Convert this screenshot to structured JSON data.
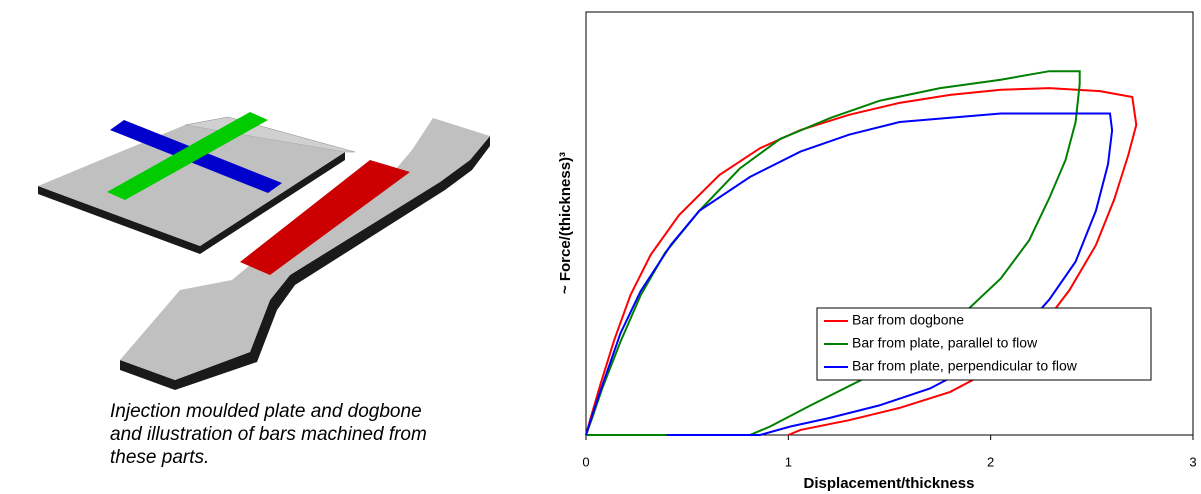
{
  "caption": [
    "Injection moulded plate and dogbone",
    "and illustration of bars machined from",
    "these parts."
  ],
  "chart_data": {
    "type": "line",
    "x_label": "Displacement/thickness",
    "y_label": "~ Force/(thickness)³",
    "xlim": [
      0,
      3
    ],
    "xticks": [
      0,
      1,
      2,
      3
    ],
    "ylim": [
      0,
      1
    ],
    "grid": false,
    "legend": "lower right",
    "series": [
      {
        "name": "Bar from dogbone",
        "color": "#ff0000",
        "x": [
          0,
          0.02,
          0.07,
          0.14,
          0.22,
          0.32,
          0.46,
          0.66,
          0.86,
          1.06,
          1.3,
          1.55,
          1.8,
          2.05,
          2.29,
          2.54,
          2.7,
          2.72,
          2.68,
          2.61,
          2.52,
          2.39,
          2.24,
          2.05,
          1.8,
          1.55,
          1.3,
          1.06,
          1.0
        ],
        "values": [
          0,
          0.035,
          0.118,
          0.225,
          0.331,
          0.426,
          0.52,
          0.615,
          0.678,
          0.721,
          0.757,
          0.785,
          0.804,
          0.816,
          0.82,
          0.813,
          0.799,
          0.733,
          0.662,
          0.556,
          0.449,
          0.343,
          0.248,
          0.165,
          0.102,
          0.064,
          0.035,
          0.012,
          0
        ]
      },
      {
        "name": "Bar from plate, parallel to flow",
        "color": "#008000",
        "x": [
          0,
          0.03,
          0.08,
          0.17,
          0.27,
          0.39,
          0.56,
          0.76,
          0.96,
          1.21,
          1.45,
          1.75,
          2.05,
          2.29,
          2.44,
          2.44,
          2.42,
          2.37,
          2.29,
          2.19,
          2.05,
          1.85,
          1.6,
          1.36,
          1.11,
          0.91,
          0.81,
          0
        ],
        "values": [
          0,
          0.04,
          0.11,
          0.22,
          0.33,
          0.43,
          0.53,
          0.63,
          0.7,
          0.75,
          0.79,
          0.82,
          0.84,
          0.86,
          0.86,
          0.83,
          0.74,
          0.65,
          0.56,
          0.46,
          0.37,
          0.28,
          0.2,
          0.13,
          0.07,
          0.02,
          0,
          0
        ]
      },
      {
        "name": "Bar from plate, perpendicular to flow",
        "color": "#0000ff",
        "x": [
          0,
          0.04,
          0.09,
          0.17,
          0.27,
          0.42,
          0.56,
          0.81,
          1.06,
          1.3,
          1.55,
          1.8,
          2.05,
          2.29,
          2.59,
          2.6,
          2.58,
          2.52,
          2.42,
          2.29,
          2.14,
          1.94,
          1.7,
          1.45,
          1.2,
          1.01,
          0.86,
          0.4
        ],
        "values": [
          0,
          0.06,
          0.13,
          0.24,
          0.34,
          0.45,
          0.53,
          0.61,
          0.67,
          0.71,
          0.74,
          0.75,
          0.76,
          0.76,
          0.76,
          0.72,
          0.64,
          0.53,
          0.41,
          0.32,
          0.24,
          0.17,
          0.11,
          0.07,
          0.04,
          0.02,
          0,
          0
        ]
      }
    ]
  }
}
